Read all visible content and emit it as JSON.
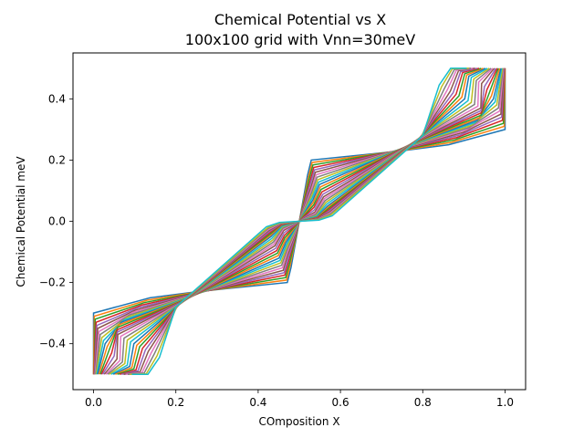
{
  "chart_data": {
    "type": "line",
    "title": "Chemical Potential vs X",
    "subtitle": "100x100 grid with Vnn=30meV",
    "xlabel": "COmposition X",
    "ylabel": "Chemical Potential meV",
    "xlim": [
      -0.05,
      1.05
    ],
    "ylim": [
      -0.55,
      0.55
    ],
    "x_ticks": [
      0.0,
      0.2,
      0.4,
      0.6,
      0.8,
      1.0
    ],
    "x_tick_labels": [
      "0.0",
      "0.2",
      "0.4",
      "0.6",
      "0.8",
      "1.0"
    ],
    "y_ticks": [
      -0.4,
      -0.2,
      0.0,
      0.2,
      0.4
    ],
    "y_tick_labels": [
      "−0.4",
      "−0.2",
      "0.0",
      "0.2",
      "0.4"
    ],
    "grid": false,
    "legend": "none",
    "series_count": 30,
    "series_colors": [
      "#1f77b4",
      "#ff7f0e",
      "#2ca02c",
      "#d62728",
      "#9467bd",
      "#8c564b",
      "#e377c2",
      "#7f7f7f",
      "#bcbd22",
      "#17becf"
    ],
    "series": [
      {
        "x": [
          0.0,
          0.0,
          0.137,
          0.25,
          0.471,
          0.48,
          0.5,
          0.52,
          0.529,
          0.75,
          0.863,
          1.0,
          1.0
        ],
        "y": [
          -0.5,
          -0.3,
          -0.25,
          -0.23,
          -0.2,
          -0.15,
          0.0,
          0.15,
          0.2,
          0.23,
          0.25,
          0.3,
          0.5
        ]
      },
      {
        "x": [
          0.0,
          0.002,
          0.13,
          0.248,
          0.469,
          0.478,
          0.5,
          0.522,
          0.531,
          0.752,
          0.87,
          0.998,
          1.0
        ],
        "y": [
          -0.5,
          -0.31,
          -0.258,
          -0.232,
          -0.192,
          -0.142,
          0.0,
          0.142,
          0.192,
          0.232,
          0.258,
          0.31,
          0.5
        ]
      },
      {
        "x": [
          0.001,
          0.004,
          0.123,
          0.246,
          0.467,
          0.477,
          0.5,
          0.523,
          0.533,
          0.754,
          0.877,
          0.996,
          0.999
        ],
        "y": [
          -0.5,
          -0.32,
          -0.266,
          -0.234,
          -0.184,
          -0.134,
          0.0,
          0.134,
          0.184,
          0.234,
          0.266,
          0.32,
          0.5
        ]
      },
      {
        "x": [
          0.001,
          0.006,
          0.116,
          0.244,
          0.465,
          0.475,
          0.5,
          0.525,
          0.535,
          0.756,
          0.884,
          0.994,
          0.999
        ],
        "y": [
          -0.5,
          -0.33,
          -0.274,
          -0.236,
          -0.176,
          -0.126,
          0.0,
          0.126,
          0.176,
          0.236,
          0.274,
          0.33,
          0.5
        ]
      },
      {
        "x": [
          0.002,
          0.008,
          0.109,
          0.242,
          0.463,
          0.474,
          0.5,
          0.526,
          0.537,
          0.758,
          0.891,
          0.992,
          0.998
        ],
        "y": [
          -0.5,
          -0.34,
          -0.282,
          -0.238,
          -0.168,
          -0.118,
          0.0,
          0.118,
          0.168,
          0.238,
          0.282,
          0.34,
          0.5
        ]
      },
      {
        "x": [
          0.003,
          0.01,
          0.102,
          0.24,
          0.461,
          0.472,
          0.5,
          0.528,
          0.539,
          0.76,
          0.898,
          0.99,
          0.997
        ],
        "y": [
          -0.5,
          -0.35,
          -0.29,
          -0.24,
          -0.16,
          -0.11,
          0.0,
          0.11,
          0.16,
          0.24,
          0.29,
          0.35,
          0.5
        ]
      },
      {
        "x": [
          0.004,
          0.013,
          0.095,
          0.238,
          0.459,
          0.471,
          0.5,
          0.529,
          0.541,
          0.762,
          0.905,
          0.987,
          0.996
        ],
        "y": [
          -0.5,
          -0.36,
          -0.298,
          -0.242,
          -0.152,
          -0.102,
          0.0,
          0.102,
          0.152,
          0.242,
          0.298,
          0.36,
          0.5
        ]
      },
      {
        "x": [
          0.005,
          0.016,
          0.088,
          0.236,
          0.457,
          0.47,
          0.5,
          0.53,
          0.543,
          0.764,
          0.912,
          0.984,
          0.995
        ],
        "y": [
          -0.5,
          -0.37,
          -0.306,
          -0.244,
          -0.144,
          -0.094,
          0.0,
          0.094,
          0.144,
          0.244,
          0.306,
          0.37,
          0.5
        ]
      },
      {
        "x": [
          0.006,
          0.02,
          0.081,
          0.234,
          0.455,
          0.469,
          0.5,
          0.531,
          0.545,
          0.766,
          0.919,
          0.98,
          0.994
        ],
        "y": [
          -0.5,
          -0.38,
          -0.314,
          -0.246,
          -0.136,
          -0.086,
          0.0,
          0.086,
          0.136,
          0.246,
          0.314,
          0.38,
          0.5
        ]
      },
      {
        "x": [
          0.008,
          0.024,
          0.074,
          0.232,
          0.453,
          0.468,
          0.5,
          0.532,
          0.547,
          0.768,
          0.926,
          0.976,
          0.992
        ],
        "y": [
          -0.5,
          -0.39,
          -0.322,
          -0.248,
          -0.128,
          -0.078,
          0.0,
          0.078,
          0.128,
          0.248,
          0.322,
          0.39,
          0.5
        ]
      },
      {
        "x": [
          0.01,
          0.028,
          0.067,
          0.23,
          0.451,
          0.467,
          0.5,
          0.533,
          0.549,
          0.77,
          0.933,
          0.972,
          0.99
        ],
        "y": [
          -0.5,
          -0.4,
          -0.33,
          -0.25,
          -0.12,
          -0.07,
          0.0,
          0.07,
          0.12,
          0.25,
          0.33,
          0.4,
          0.5
        ]
      },
      {
        "x": [
          0.013,
          0.033,
          0.062,
          0.228,
          0.449,
          0.466,
          0.5,
          0.534,
          0.551,
          0.772,
          0.938,
          0.967,
          0.987
        ],
        "y": [
          -0.5,
          -0.41,
          -0.338,
          -0.252,
          -0.112,
          -0.062,
          0.0,
          0.062,
          0.112,
          0.252,
          0.338,
          0.41,
          0.5
        ]
      },
      {
        "x": [
          0.016,
          0.038,
          0.059,
          0.226,
          0.447,
          0.465,
          0.5,
          0.535,
          0.553,
          0.774,
          0.941,
          0.962,
          0.984
        ],
        "y": [
          -0.5,
          -0.42,
          -0.346,
          -0.254,
          -0.104,
          -0.054,
          0.0,
          0.054,
          0.104,
          0.254,
          0.346,
          0.42,
          0.5
        ]
      },
      {
        "x": [
          0.019,
          0.044,
          0.058,
          0.224,
          0.445,
          0.464,
          0.5,
          0.536,
          0.555,
          0.776,
          0.942,
          0.956,
          0.981
        ],
        "y": [
          -0.5,
          -0.43,
          -0.354,
          -0.256,
          -0.096,
          -0.046,
          0.0,
          0.046,
          0.096,
          0.256,
          0.354,
          0.43,
          0.5
        ]
      },
      {
        "x": [
          0.022,
          0.05,
          0.058,
          0.222,
          0.443,
          0.463,
          0.5,
          0.537,
          0.557,
          0.778,
          0.942,
          0.95,
          0.978
        ],
        "y": [
          -0.5,
          -0.44,
          -0.362,
          -0.258,
          -0.088,
          -0.038,
          0.0,
          0.038,
          0.088,
          0.258,
          0.362,
          0.44,
          0.5
        ]
      },
      {
        "x": [
          0.026,
          0.057,
          0.059,
          0.22,
          0.441,
          0.462,
          0.5,
          0.538,
          0.559,
          0.78,
          0.941,
          0.943,
          0.974
        ],
        "y": [
          -0.5,
          -0.45,
          -0.37,
          -0.26,
          -0.08,
          -0.03,
          0.0,
          0.03,
          0.08,
          0.26,
          0.37,
          0.45,
          0.5
        ]
      },
      {
        "x": [
          0.03,
          0.064,
          0.066,
          0.218,
          0.439,
          0.461,
          0.5,
          0.539,
          0.561,
          0.782,
          0.934,
          0.936,
          0.97
        ],
        "y": [
          -0.5,
          -0.455,
          -0.376,
          -0.262,
          -0.074,
          -0.026,
          0.0,
          0.026,
          0.074,
          0.262,
          0.376,
          0.455,
          0.5
        ]
      },
      {
        "x": [
          0.034,
          0.07,
          0.074,
          0.216,
          0.437,
          0.46,
          0.5,
          0.54,
          0.563,
          0.784,
          0.926,
          0.93,
          0.966
        ],
        "y": [
          -0.5,
          -0.46,
          -0.382,
          -0.264,
          -0.068,
          -0.022,
          0.0,
          0.022,
          0.068,
          0.264,
          0.382,
          0.46,
          0.5
        ]
      },
      {
        "x": [
          0.038,
          0.076,
          0.082,
          0.214,
          0.435,
          0.459,
          0.5,
          0.541,
          0.565,
          0.786,
          0.918,
          0.924,
          0.962
        ],
        "y": [
          -0.5,
          -0.465,
          -0.388,
          -0.266,
          -0.062,
          -0.018,
          0.0,
          0.018,
          0.062,
          0.266,
          0.388,
          0.465,
          0.5
        ]
      },
      {
        "x": [
          0.043,
          0.082,
          0.09,
          0.212,
          0.433,
          0.458,
          0.5,
          0.542,
          0.567,
          0.788,
          0.91,
          0.918,
          0.957
        ],
        "y": [
          -0.5,
          -0.47,
          -0.394,
          -0.268,
          -0.056,
          -0.016,
          0.0,
          0.016,
          0.056,
          0.268,
          0.394,
          0.47,
          0.5
        ]
      },
      {
        "x": [
          0.048,
          0.088,
          0.098,
          0.21,
          0.431,
          0.457,
          0.5,
          0.543,
          0.569,
          0.79,
          0.902,
          0.912,
          0.952
        ],
        "y": [
          -0.5,
          -0.474,
          -0.4,
          -0.27,
          -0.05,
          -0.014,
          0.0,
          0.014,
          0.05,
          0.27,
          0.4,
          0.474,
          0.5
        ]
      },
      {
        "x": [
          0.053,
          0.093,
          0.105,
          0.209,
          0.43,
          0.457,
          0.5,
          0.543,
          0.57,
          0.791,
          0.895,
          0.907,
          0.947
        ],
        "y": [
          -0.5,
          -0.478,
          -0.405,
          -0.271,
          -0.046,
          -0.012,
          0.0,
          0.012,
          0.046,
          0.271,
          0.405,
          0.478,
          0.5
        ]
      },
      {
        "x": [
          0.058,
          0.098,
          0.112,
          0.208,
          0.429,
          0.456,
          0.5,
          0.544,
          0.571,
          0.792,
          0.888,
          0.902,
          0.942
        ],
        "y": [
          -0.5,
          -0.482,
          -0.41,
          -0.272,
          -0.042,
          -0.011,
          0.0,
          0.011,
          0.042,
          0.272,
          0.41,
          0.482,
          0.5
        ]
      },
      {
        "x": [
          0.063,
          0.103,
          0.119,
          0.207,
          0.428,
          0.456,
          0.5,
          0.544,
          0.572,
          0.793,
          0.881,
          0.897,
          0.937
        ],
        "y": [
          -0.5,
          -0.486,
          -0.415,
          -0.273,
          -0.038,
          -0.01,
          0.0,
          0.01,
          0.038,
          0.273,
          0.415,
          0.486,
          0.5
        ]
      },
      {
        "x": [
          0.068,
          0.108,
          0.126,
          0.206,
          0.427,
          0.455,
          0.5,
          0.545,
          0.573,
          0.794,
          0.874,
          0.892,
          0.932
        ],
        "y": [
          -0.5,
          -0.489,
          -0.42,
          -0.274,
          -0.034,
          -0.009,
          0.0,
          0.009,
          0.034,
          0.274,
          0.42,
          0.489,
          0.5
        ]
      },
      {
        "x": [
          0.073,
          0.113,
          0.133,
          0.205,
          0.426,
          0.455,
          0.5,
          0.545,
          0.574,
          0.795,
          0.867,
          0.887,
          0.927
        ],
        "y": [
          -0.5,
          -0.492,
          -0.425,
          -0.275,
          -0.03,
          -0.008,
          0.0,
          0.008,
          0.03,
          0.275,
          0.425,
          0.492,
          0.5
        ]
      },
      {
        "x": [
          0.078,
          0.118,
          0.14,
          0.204,
          0.425,
          0.454,
          0.5,
          0.546,
          0.575,
          0.796,
          0.86,
          0.882,
          0.922
        ],
        "y": [
          -0.5,
          -0.494,
          -0.43,
          -0.276,
          -0.027,
          -0.007,
          0.0,
          0.007,
          0.027,
          0.276,
          0.43,
          0.494,
          0.5
        ]
      },
      {
        "x": [
          0.083,
          0.123,
          0.147,
          0.203,
          0.424,
          0.454,
          0.5,
          0.546,
          0.576,
          0.797,
          0.853,
          0.877,
          0.917
        ],
        "y": [
          -0.5,
          -0.496,
          -0.435,
          -0.277,
          -0.024,
          -0.006,
          0.0,
          0.006,
          0.024,
          0.277,
          0.435,
          0.496,
          0.5
        ]
      },
      {
        "x": [
          0.088,
          0.128,
          0.154,
          0.202,
          0.423,
          0.453,
          0.5,
          0.547,
          0.577,
          0.798,
          0.846,
          0.872,
          0.912
        ],
        "y": [
          -0.5,
          -0.498,
          -0.44,
          -0.278,
          -0.021,
          -0.005,
          0.0,
          0.005,
          0.021,
          0.278,
          0.44,
          0.498,
          0.5
        ]
      },
      {
        "x": [
          0.093,
          0.132,
          0.16,
          0.2,
          0.42,
          0.452,
          0.5,
          0.548,
          0.58,
          0.8,
          0.84,
          0.868,
          0.907
        ],
        "y": [
          -0.5,
          -0.5,
          -0.445,
          -0.28,
          -0.018,
          -0.004,
          0.0,
          0.004,
          0.018,
          0.28,
          0.445,
          0.5,
          0.5
        ]
      }
    ]
  }
}
